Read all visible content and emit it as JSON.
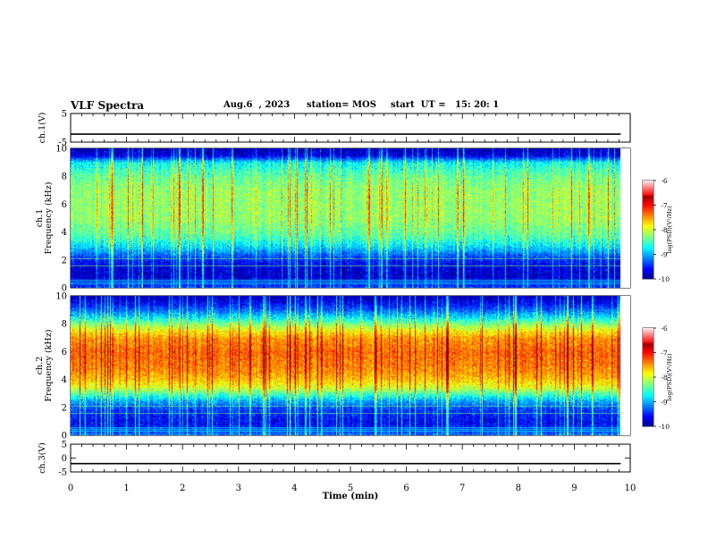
{
  "header": {
    "title": "VLF Spectra",
    "date": "Aug.6  , 2023",
    "station": "station= MOS",
    "start": "start  UT =   15: 20: 1"
  },
  "chart_data": [
    {
      "type": "line",
      "panel": "ch1-waveform",
      "ylabel": "ch.1(V)",
      "ylim": [
        -5,
        5
      ],
      "yticks": [
        "5",
        "-5"
      ],
      "xlim": [
        0,
        10
      ],
      "series": [
        {
          "values": [
            [
              0,
              -2.2
            ],
            [
              9.83,
              -2.2
            ]
          ]
        }
      ]
    },
    {
      "type": "heatmap",
      "panel": "ch1-spectrogram",
      "ylabel": "ch.1\nFrequency (kHz)",
      "ylim": [
        0,
        10
      ],
      "yticks": [
        "0",
        "2",
        "4",
        "6",
        "8",
        "10"
      ],
      "xlim": [
        0,
        10
      ],
      "data_end_min": 9.83,
      "colorbar": {
        "label": "log(PSD)(V²/Hz)",
        "range": [
          -10,
          -6
        ],
        "ticks": [
          "-6",
          "-7",
          "-8",
          "-9",
          "-10"
        ]
      },
      "profile_freq_khz": [
        0,
        0.5,
        1,
        1.5,
        2,
        2.5,
        3,
        3.5,
        4,
        4.5,
        5,
        6,
        7,
        8,
        9,
        9.5,
        10
      ],
      "profile_log_psd": [
        -9.2,
        -9.6,
        -9.7,
        -9.6,
        -9.4,
        -9.0,
        -8.6,
        -8.3,
        -8.1,
        -8.0,
        -7.9,
        -7.9,
        -7.9,
        -8.1,
        -8.5,
        -9.6,
        -9.8
      ]
    },
    {
      "type": "heatmap",
      "panel": "ch2-spectrogram",
      "ylabel": "ch.2\nFrequency (kHz)",
      "ylim": [
        0,
        10
      ],
      "yticks": [
        "0",
        "2",
        "4",
        "6",
        "8",
        "10"
      ],
      "xlim": [
        0,
        10
      ],
      "data_end_min": 9.83,
      "colorbar": {
        "label": "log(PSD)(V²/Hz)",
        "range": [
          -10,
          -6
        ],
        "ticks": [
          "-6",
          "-7",
          "-8",
          "-9",
          "-10"
        ]
      },
      "profile_freq_khz": [
        0,
        0.5,
        1,
        1.5,
        2,
        2.5,
        3,
        3.5,
        4,
        4.5,
        5,
        6,
        7,
        7.5,
        8,
        8.5,
        9,
        9.5,
        10
      ],
      "profile_log_psd": [
        -9.0,
        -9.4,
        -9.5,
        -9.4,
        -9.2,
        -8.8,
        -8.2,
        -7.6,
        -7.3,
        -7.1,
        -7.0,
        -6.9,
        -7.1,
        -7.5,
        -8.0,
        -8.6,
        -9.1,
        -9.5,
        -9.8
      ]
    },
    {
      "type": "line",
      "panel": "ch3-waveform",
      "ylabel": "ch.3(V)",
      "ylim": [
        -5,
        5
      ],
      "yticks": [
        "5",
        "0",
        "-5"
      ],
      "xlim": [
        0,
        10
      ],
      "xlabel": "Time  (min)",
      "xticks": [
        "0",
        "1",
        "2",
        "3",
        "4",
        "5",
        "6",
        "7",
        "8",
        "9",
        "10"
      ],
      "series": [
        {
          "values": [
            [
              0,
              -2.0
            ],
            [
              9.83,
              -2.0
            ]
          ]
        }
      ]
    }
  ]
}
